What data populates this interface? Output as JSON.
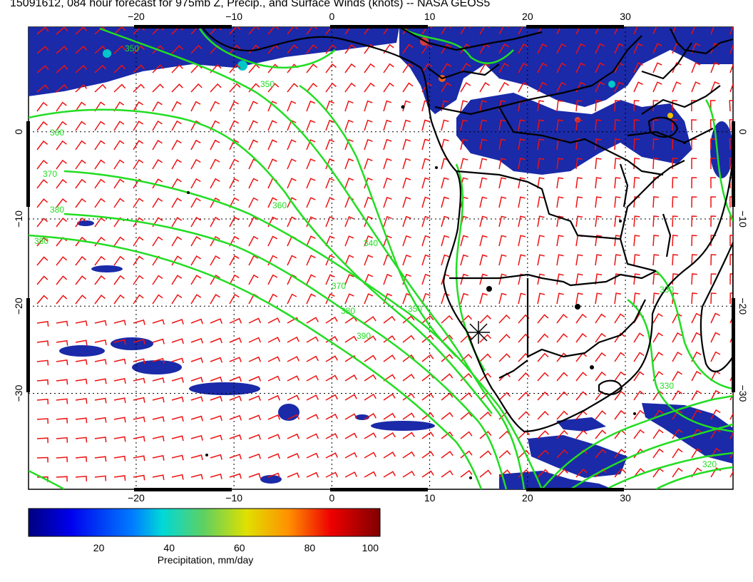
{
  "title": "15091612, 084 hour forecast for 975mb Z, Precip., and Surface Winds (knots) -- NASA GEOS5",
  "map": {
    "lon_range": [
      -31,
      41
    ],
    "lat_range": [
      -41,
      12
    ],
    "lon_ticks": [
      {
        "value": -20,
        "label": "−20"
      },
      {
        "value": -10,
        "label": "−10"
      },
      {
        "value": 0,
        "label": "0"
      },
      {
        "value": 10,
        "label": "10"
      },
      {
        "value": 20,
        "label": "20"
      },
      {
        "value": 30,
        "label": "30"
      }
    ],
    "lat_ticks": [
      {
        "value": 0,
        "label": "0"
      },
      {
        "value": -10,
        "label": "−10"
      },
      {
        "value": -20,
        "label": "−20"
      },
      {
        "value": -30,
        "label": "−30"
      }
    ],
    "marker_lonlat": [
      15,
      -24
    ],
    "colors": {
      "coast": "#000000",
      "contour": "#22dd22",
      "barb": "#ee1111",
      "precip": "#1a2aa8"
    }
  },
  "contour_labels": [
    "350",
    "360",
    "370",
    "380",
    "390",
    "340",
    "330",
    "320"
  ],
  "colorbar": {
    "ticks": [
      {
        "value": 20,
        "label": "20"
      },
      {
        "value": 40,
        "label": "40"
      },
      {
        "value": 60,
        "label": "60"
      },
      {
        "value": 80,
        "label": "80"
      },
      {
        "value": 100,
        "label": "100"
      }
    ],
    "range": [
      0,
      100
    ],
    "label": "Precipitation, mm/day"
  }
}
